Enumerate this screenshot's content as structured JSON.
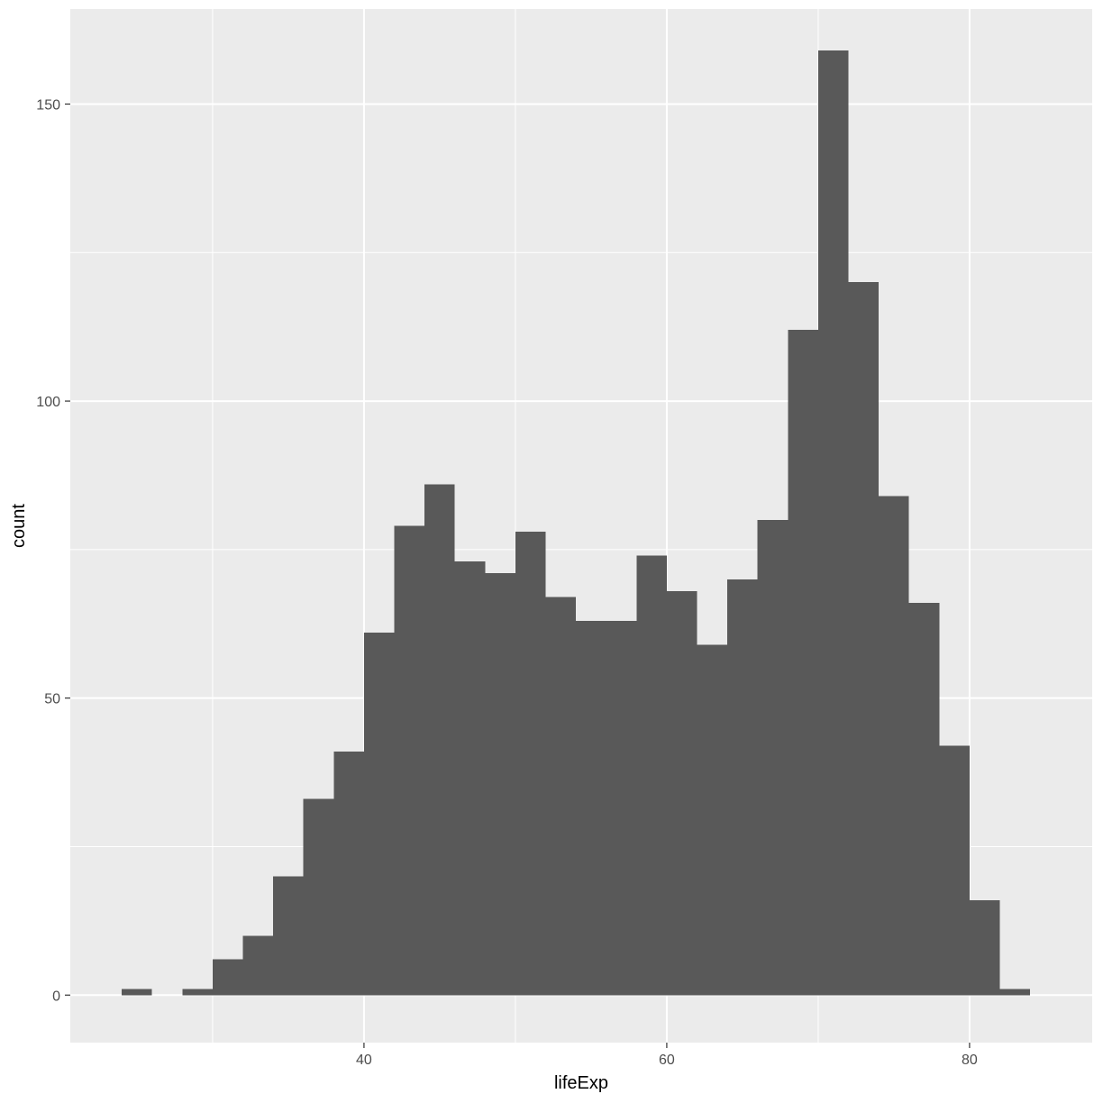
{
  "chart_data": {
    "type": "bar",
    "subtype": "histogram",
    "xlabel": "lifeExp",
    "ylabel": "count",
    "xlim": [
      20.6,
      88.1
    ],
    "ylim": [
      -8,
      166
    ],
    "x_ticks": [
      40,
      60,
      80
    ],
    "x_minor_ticks": [
      30,
      50,
      70
    ],
    "y_ticks": [
      0,
      50,
      100,
      150
    ],
    "y_minor_ticks": [
      25,
      75,
      125
    ],
    "grid": true,
    "legend": "none",
    "bar_color": "#595959",
    "panel_color": "#ebebeb",
    "bins": [
      {
        "x0": 24.0,
        "x1": 26.0,
        "count": 1
      },
      {
        "x0": 26.0,
        "x1": 28.0,
        "count": 0
      },
      {
        "x0": 28.0,
        "x1": 30.0,
        "count": 1
      },
      {
        "x0": 30.0,
        "x1": 32.0,
        "count": 6
      },
      {
        "x0": 32.0,
        "x1": 34.0,
        "count": 10
      },
      {
        "x0": 34.0,
        "x1": 36.0,
        "count": 20
      },
      {
        "x0": 36.0,
        "x1": 38.0,
        "count": 33
      },
      {
        "x0": 38.0,
        "x1": 40.0,
        "count": 41
      },
      {
        "x0": 40.0,
        "x1": 42.0,
        "count": 61
      },
      {
        "x0": 42.0,
        "x1": 44.0,
        "count": 79
      },
      {
        "x0": 44.0,
        "x1": 46.0,
        "count": 86
      },
      {
        "x0": 46.0,
        "x1": 48.0,
        "count": 73
      },
      {
        "x0": 48.0,
        "x1": 50.0,
        "count": 71
      },
      {
        "x0": 50.0,
        "x1": 52.0,
        "count": 78
      },
      {
        "x0": 52.0,
        "x1": 54.0,
        "count": 67
      },
      {
        "x0": 54.0,
        "x1": 56.0,
        "count": 63
      },
      {
        "x0": 56.0,
        "x1": 58.0,
        "count": 63
      },
      {
        "x0": 58.0,
        "x1": 60.0,
        "count": 74
      },
      {
        "x0": 60.0,
        "x1": 62.0,
        "count": 68
      },
      {
        "x0": 62.0,
        "x1": 64.0,
        "count": 59
      },
      {
        "x0": 64.0,
        "x1": 66.0,
        "count": 70
      },
      {
        "x0": 66.0,
        "x1": 68.0,
        "count": 80
      },
      {
        "x0": 68.0,
        "x1": 70.0,
        "count": 112
      },
      {
        "x0": 70.0,
        "x1": 72.0,
        "count": 159
      },
      {
        "x0": 72.0,
        "x1": 74.0,
        "count": 120
      },
      {
        "x0": 74.0,
        "x1": 76.0,
        "count": 84
      },
      {
        "x0": 76.0,
        "x1": 78.0,
        "count": 66
      },
      {
        "x0": 78.0,
        "x1": 80.0,
        "count": 42
      },
      {
        "x0": 80.0,
        "x1": 82.0,
        "count": 16
      },
      {
        "x0": 82.0,
        "x1": 84.0,
        "count": 1
      }
    ]
  }
}
